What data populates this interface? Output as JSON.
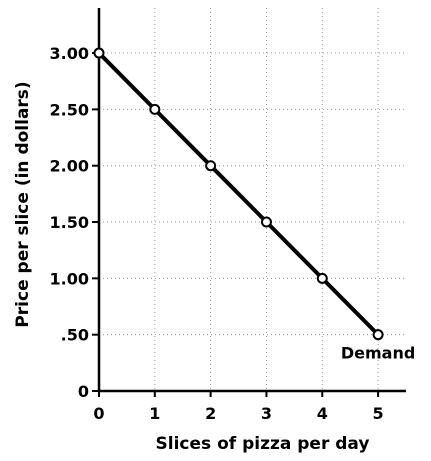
{
  "chart_data": {
    "type": "line",
    "title": "",
    "xlabel": "Slices of pizza per day",
    "ylabel": "Price per slice (in dollars)",
    "xlim": [
      0,
      5.5
    ],
    "ylim": [
      0,
      3.4
    ],
    "grid": true,
    "x_ticks": [
      0,
      1,
      2,
      3,
      4,
      5
    ],
    "x_tick_labels": [
      "0",
      "1",
      "2",
      "3",
      "4",
      "5"
    ],
    "y_ticks": [
      0,
      0.5,
      1,
      1.5,
      2,
      2.5,
      3
    ],
    "y_tick_labels": [
      "0",
      ".50",
      "1.00",
      "1.50",
      "2.00",
      "2.50",
      "3.00"
    ],
    "series": [
      {
        "x": [
          0,
          1,
          2,
          3,
          4,
          5
        ],
        "y": [
          3.0,
          2.5,
          2.0,
          1.5,
          1.0,
          0.5
        ]
      }
    ],
    "annotations": [
      {
        "text": "Demand",
        "x": 5,
        "y": 0.5
      }
    ],
    "colors": {
      "line": "#000000",
      "marker_fill": "#ffffff",
      "grid": "#9a9a9a"
    }
  }
}
